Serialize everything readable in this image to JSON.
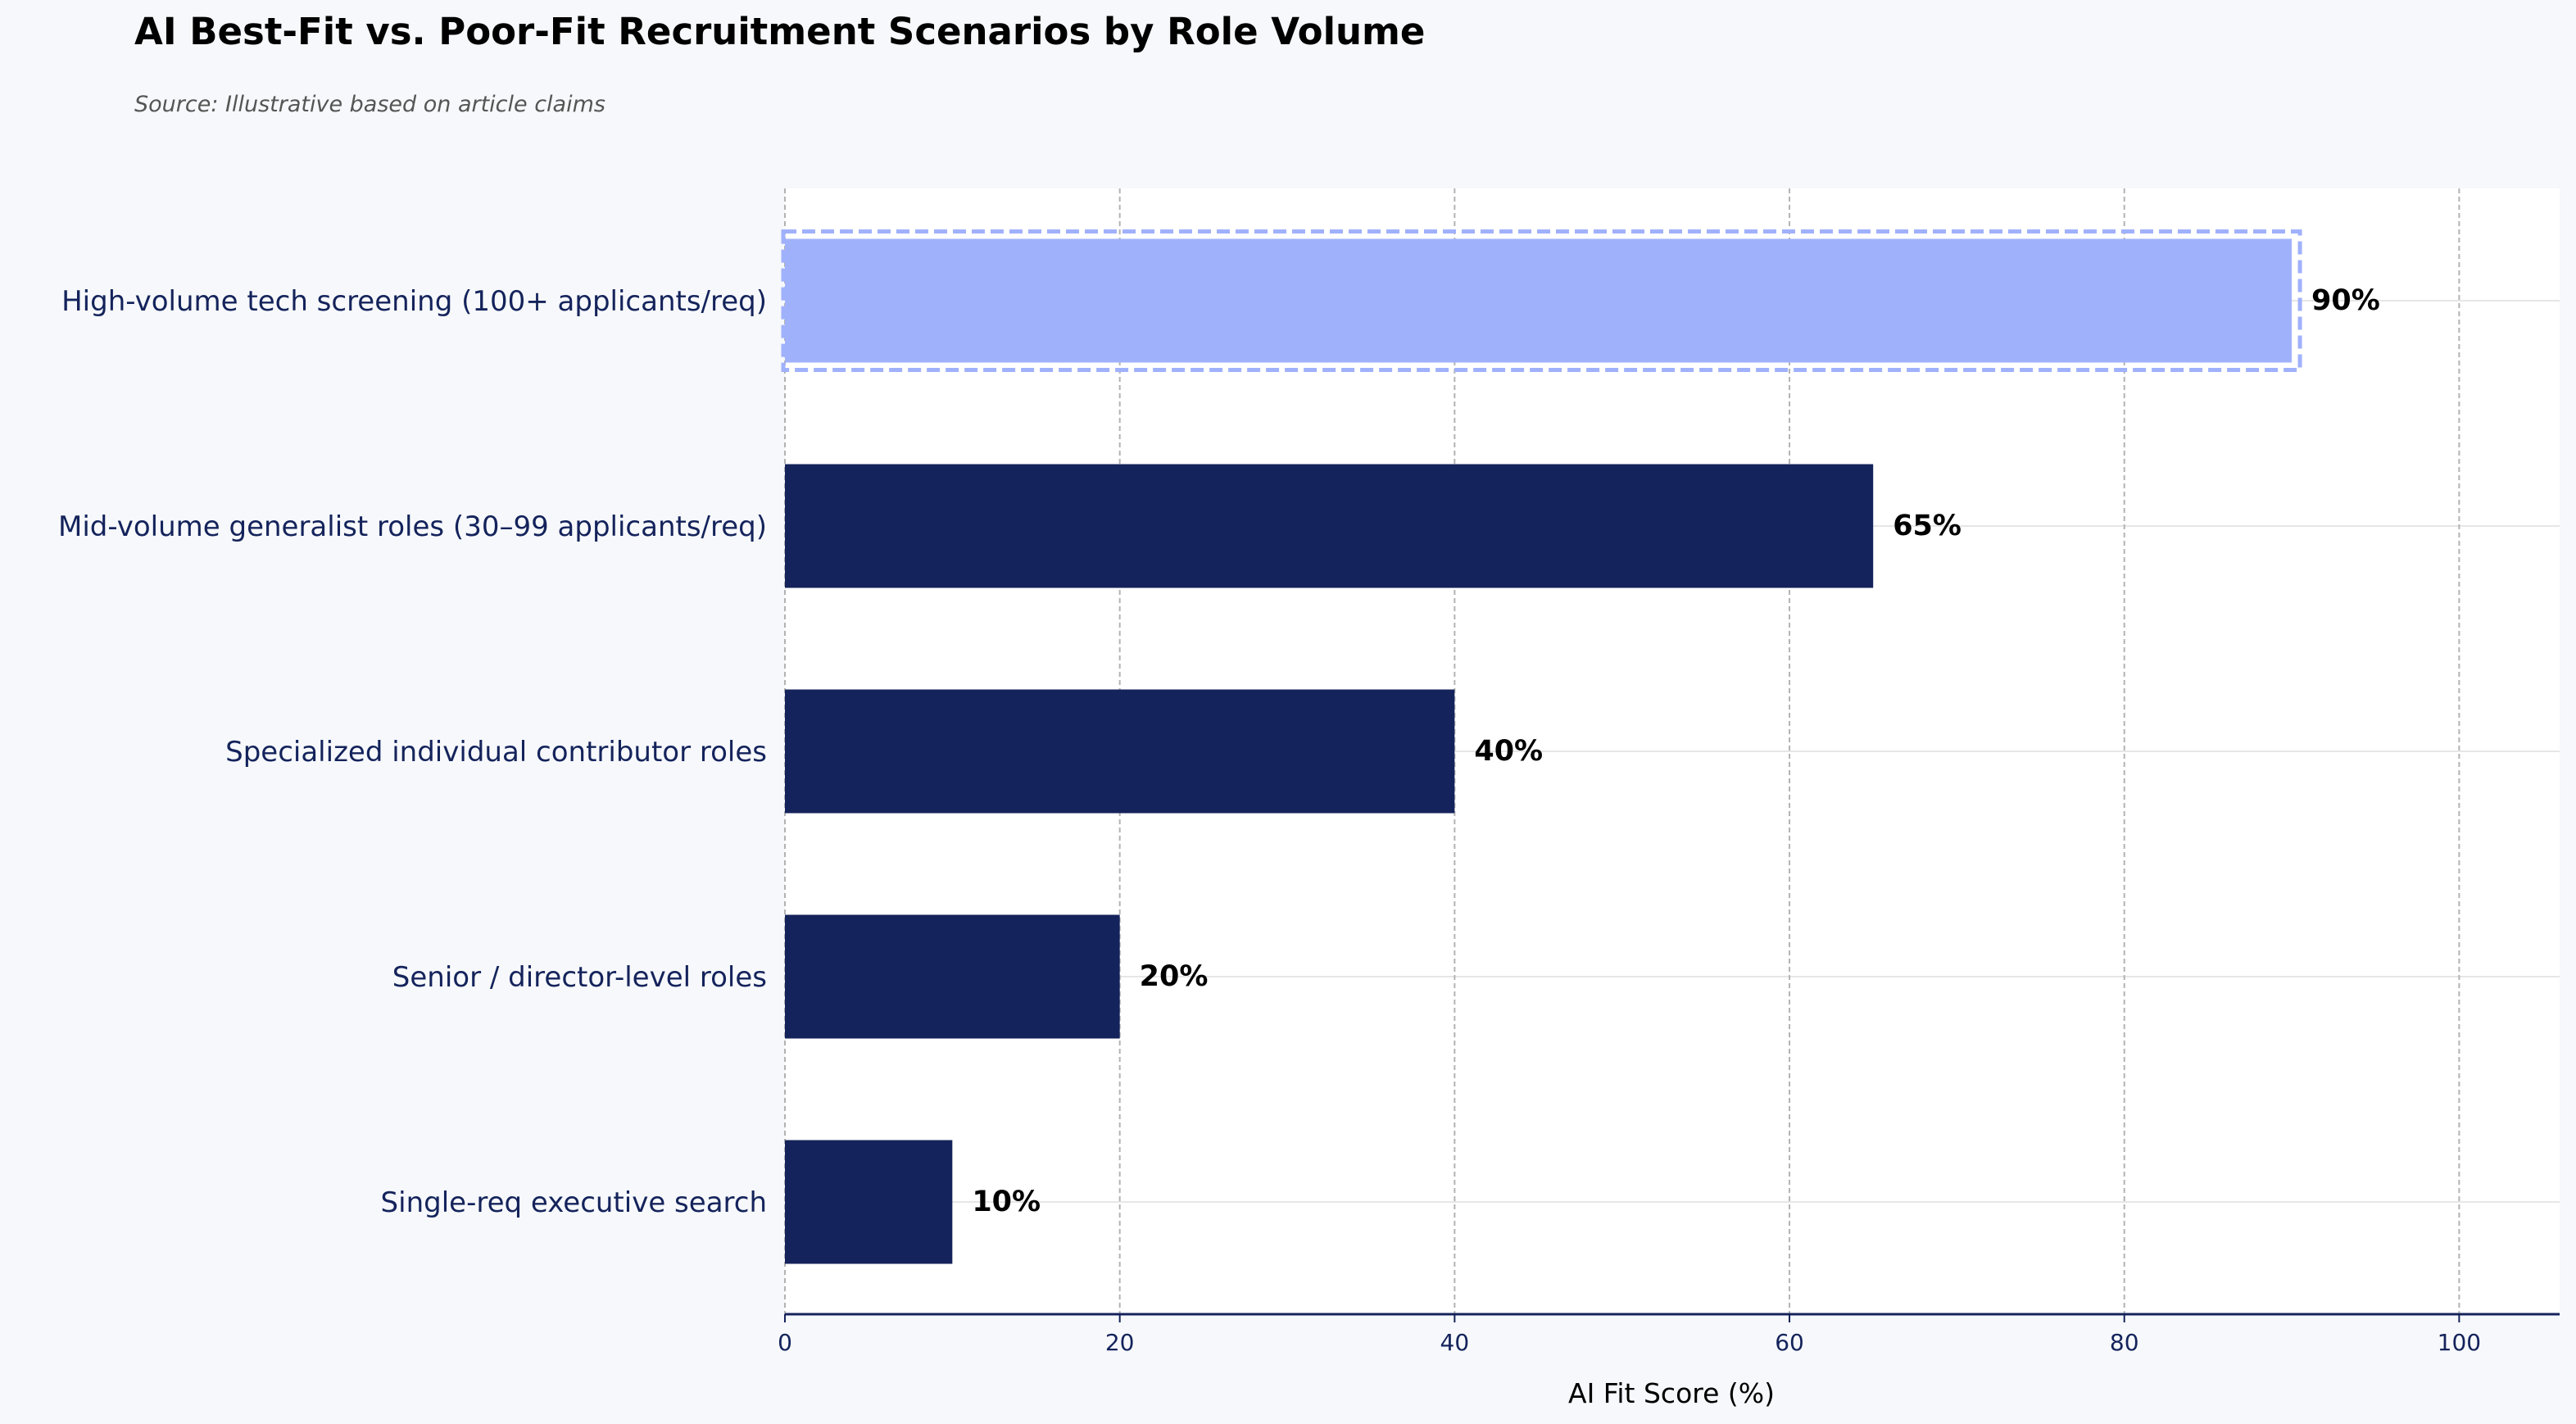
{
  "chart_data": {
    "type": "bar",
    "orientation": "horizontal",
    "title": "AI Best-Fit vs. Poor-Fit Recruitment Scenarios by Role Volume",
    "subtitle": "Source: Illustrative based on article claims",
    "xlabel": "AI Fit Score (%)",
    "ylabel": "",
    "xlim": [
      0,
      106
    ],
    "x_ticks": [
      0,
      20,
      40,
      60,
      80,
      100
    ],
    "grid": {
      "x": true,
      "y": true
    },
    "value_suffix": "%",
    "categories": [
      "High-volume tech screening (100+ applicants/req)",
      "Mid-volume generalist roles (30–99 applicants/req)",
      "Specialized individual contributor roles",
      "Senior / director-level roles",
      "Single-req executive search"
    ],
    "values": [
      90,
      65,
      40,
      20,
      10
    ],
    "highlight_index": 0,
    "colors": {
      "bar": "#14235b",
      "highlight": "#a0b1fc",
      "highlight_border": "#a0b1fc",
      "category_text": "#14235b",
      "axis": "#14235b",
      "label_text": "#000000",
      "plot_background": "#ffffff",
      "page_background": "#f6f8fb"
    }
  }
}
